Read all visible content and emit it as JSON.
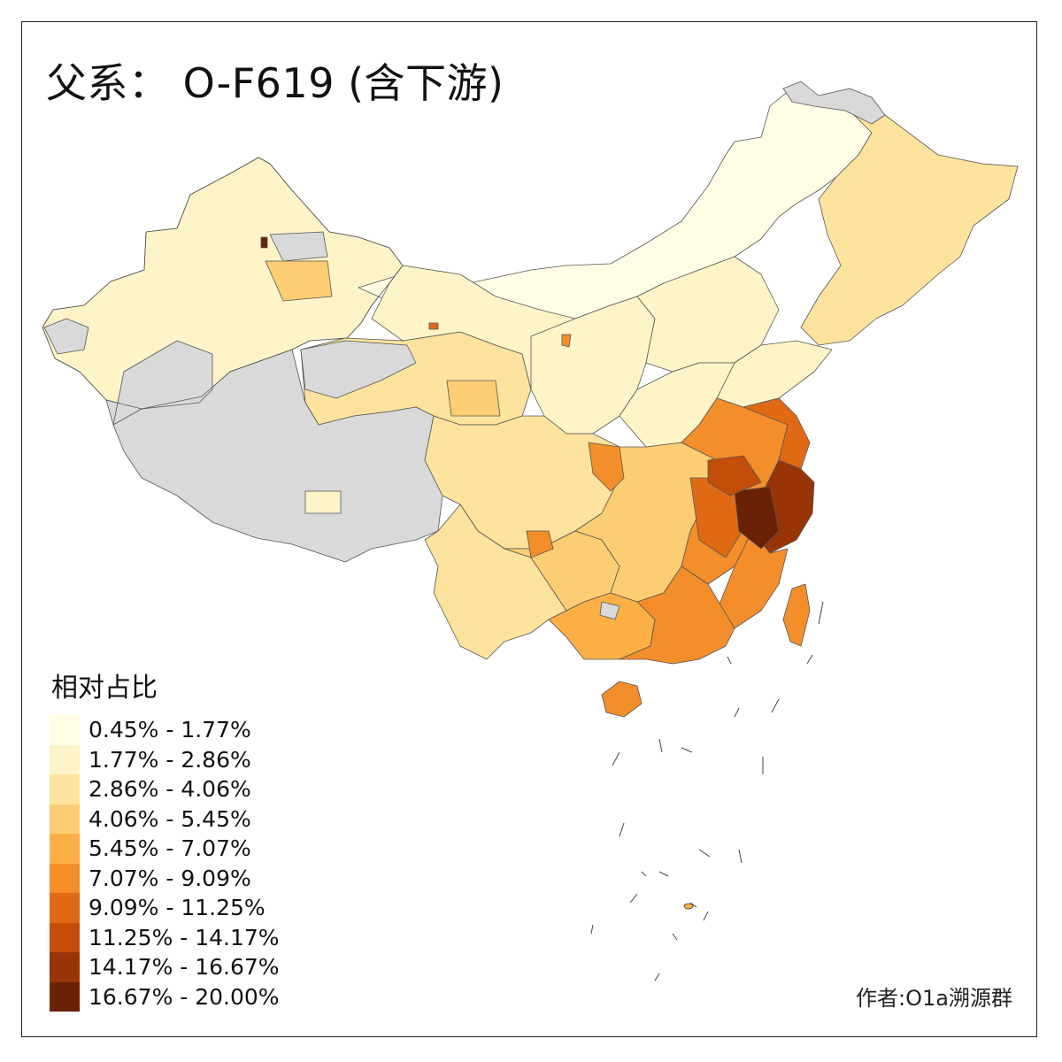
{
  "title": "父系： O-F619 (含下游)",
  "legend": {
    "title": "相对占比",
    "classes": [
      {
        "label": "0.45% - 1.77%",
        "color": "#fffde6"
      },
      {
        "label": "1.77% - 2.86%",
        "color": "#fff4c8"
      },
      {
        "label": "2.86% - 4.06%",
        "color": "#fee39e"
      },
      {
        "label": "4.06% - 5.45%",
        "color": "#fdcd73"
      },
      {
        "label": "5.45% - 7.07%",
        "color": "#fbaf45"
      },
      {
        "label": "7.07% - 9.09%",
        "color": "#f38e2a"
      },
      {
        "label": "9.09% - 11.25%",
        "color": "#e06a14"
      },
      {
        "label": "11.25% - 14.17%",
        "color": "#c44d0a"
      },
      {
        "label": "14.17% - 16.67%",
        "color": "#993407"
      },
      {
        "label": "16.67% - 20.00%",
        "color": "#6b2105"
      }
    ]
  },
  "no_data_color": "#d9d9d9",
  "credit": "作者:O1a溯源群"
}
